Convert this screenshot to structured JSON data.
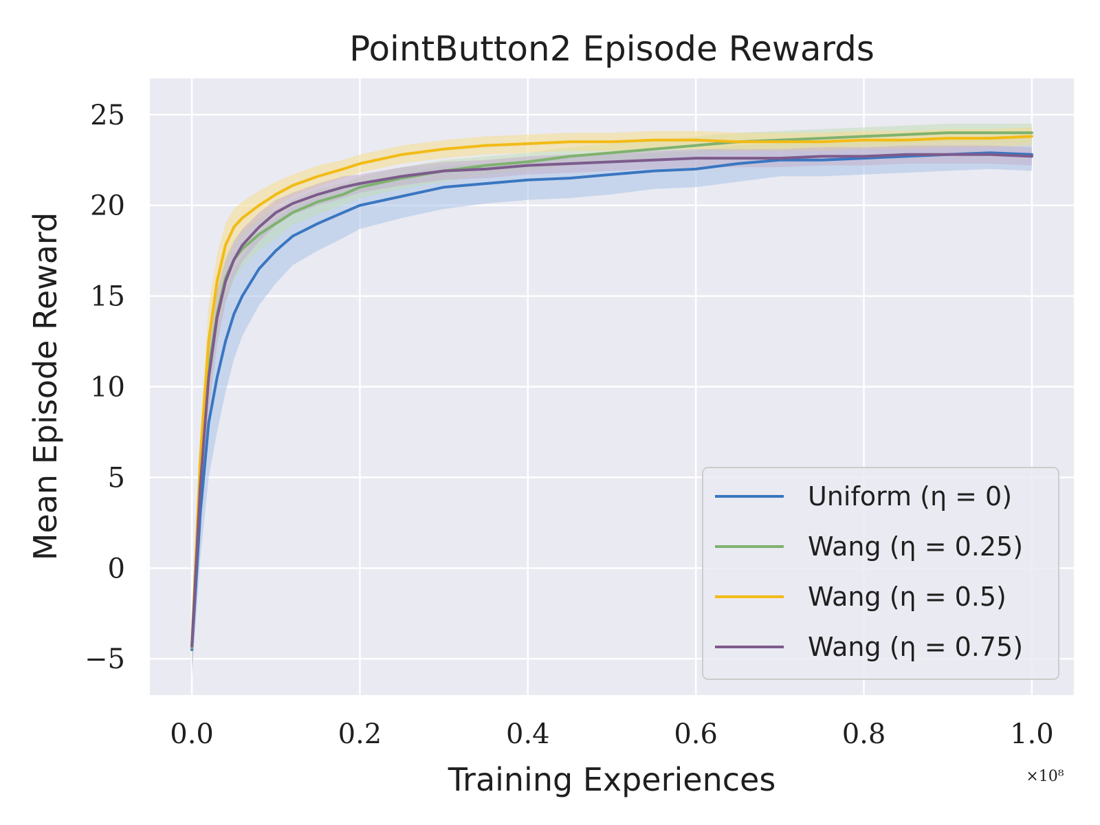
{
  "chart_data": {
    "type": "line",
    "title": "PointButton2 Episode Rewards",
    "xlabel": "Training Experiences",
    "ylabel": "Mean Episode Reward",
    "x_offset_label": "×10⁸",
    "xlim": [
      -0.05,
      1.05
    ],
    "ylim": [
      -7,
      27
    ],
    "x_ticks": [
      0.0,
      0.2,
      0.4,
      0.6,
      0.8,
      1.0
    ],
    "x_tick_labels": [
      "0.0",
      "0.2",
      "0.4",
      "0.6",
      "0.8",
      "1.0"
    ],
    "y_ticks": [
      -5,
      0,
      5,
      10,
      15,
      20,
      25
    ],
    "y_tick_labels": [
      "−5",
      "0",
      "5",
      "10",
      "15",
      "20",
      "25"
    ],
    "grid": true,
    "legend_position": "bottom-right",
    "x": [
      0.0,
      0.01,
      0.02,
      0.03,
      0.04,
      0.05,
      0.06,
      0.08,
      0.1,
      0.12,
      0.15,
      0.18,
      0.2,
      0.25,
      0.3,
      0.35,
      0.4,
      0.45,
      0.5,
      0.55,
      0.6,
      0.65,
      0.7,
      0.75,
      0.8,
      0.85,
      0.9,
      0.95,
      1.0
    ],
    "series": [
      {
        "name": "Uniform (η = 0)",
        "color": "#3a76c0",
        "band_color": "#a8c2e8",
        "values": [
          -4.5,
          3.0,
          8.0,
          10.5,
          12.5,
          14.0,
          15.0,
          16.5,
          17.5,
          18.3,
          19.0,
          19.6,
          20.0,
          20.5,
          21.0,
          21.2,
          21.4,
          21.5,
          21.7,
          21.9,
          22.0,
          22.3,
          22.5,
          22.5,
          22.6,
          22.7,
          22.8,
          22.9,
          22.8
        ],
        "band": [
          1.5,
          2.5,
          3.0,
          3.0,
          2.8,
          2.5,
          2.2,
          2.0,
          1.8,
          1.6,
          1.5,
          1.4,
          1.3,
          1.2,
          1.2,
          1.1,
          1.1,
          1.1,
          1.1,
          1.0,
          1.0,
          1.0,
          0.9,
          0.9,
          0.9,
          0.9,
          0.9,
          0.9,
          0.9
        ]
      },
      {
        "name": "Wang (η = 0.25)",
        "color": "#7fb26f",
        "band_color": "#c2dcb8",
        "values": [
          -4.4,
          5.0,
          11.0,
          14.0,
          16.0,
          17.0,
          17.6,
          18.4,
          19.0,
          19.6,
          20.2,
          20.6,
          21.0,
          21.5,
          21.9,
          22.2,
          22.4,
          22.7,
          22.9,
          23.1,
          23.3,
          23.5,
          23.6,
          23.7,
          23.8,
          23.9,
          24.0,
          24.0,
          24.0
        ],
        "band": [
          1.0,
          1.8,
          2.0,
          1.6,
          1.3,
          1.1,
          1.0,
          0.9,
          0.8,
          0.7,
          0.7,
          0.6,
          0.6,
          0.6,
          0.6,
          0.5,
          0.5,
          0.5,
          0.5,
          0.5,
          0.5,
          0.5,
          0.5,
          0.5,
          0.5,
          0.5,
          0.5,
          0.5,
          0.5
        ]
      },
      {
        "name": "Wang (η = 0.5)",
        "color": "#f2bb16",
        "band_color": "#f5dc8c",
        "values": [
          -4.3,
          6.0,
          12.5,
          15.8,
          17.8,
          18.8,
          19.3,
          20.0,
          20.6,
          21.1,
          21.6,
          22.0,
          22.3,
          22.8,
          23.1,
          23.3,
          23.4,
          23.5,
          23.5,
          23.6,
          23.6,
          23.5,
          23.5,
          23.5,
          23.6,
          23.6,
          23.7,
          23.7,
          23.8
        ],
        "band": [
          1.0,
          1.8,
          2.0,
          1.5,
          1.2,
          1.0,
          0.9,
          0.8,
          0.7,
          0.6,
          0.6,
          0.5,
          0.5,
          0.5,
          0.5,
          0.5,
          0.5,
          0.5,
          0.5,
          0.5,
          0.5,
          0.5,
          0.5,
          0.5,
          0.5,
          0.5,
          0.5,
          0.5,
          0.5
        ]
      },
      {
        "name": "Wang (η = 0.75)",
        "color": "#7d5b8c",
        "band_color": "#c4b1cc",
        "values": [
          -4.3,
          4.5,
          10.5,
          13.8,
          15.8,
          17.0,
          17.8,
          18.8,
          19.6,
          20.1,
          20.6,
          21.0,
          21.2,
          21.6,
          21.9,
          22.0,
          22.2,
          22.3,
          22.4,
          22.5,
          22.6,
          22.6,
          22.6,
          22.7,
          22.7,
          22.8,
          22.8,
          22.8,
          22.7
        ],
        "band": [
          1.0,
          1.8,
          2.0,
          1.5,
          1.2,
          1.0,
          0.9,
          0.8,
          0.7,
          0.6,
          0.6,
          0.6,
          0.5,
          0.5,
          0.5,
          0.5,
          0.5,
          0.5,
          0.5,
          0.5,
          0.5,
          0.5,
          0.5,
          0.5,
          0.5,
          0.5,
          0.5,
          0.5,
          0.5
        ]
      }
    ]
  }
}
